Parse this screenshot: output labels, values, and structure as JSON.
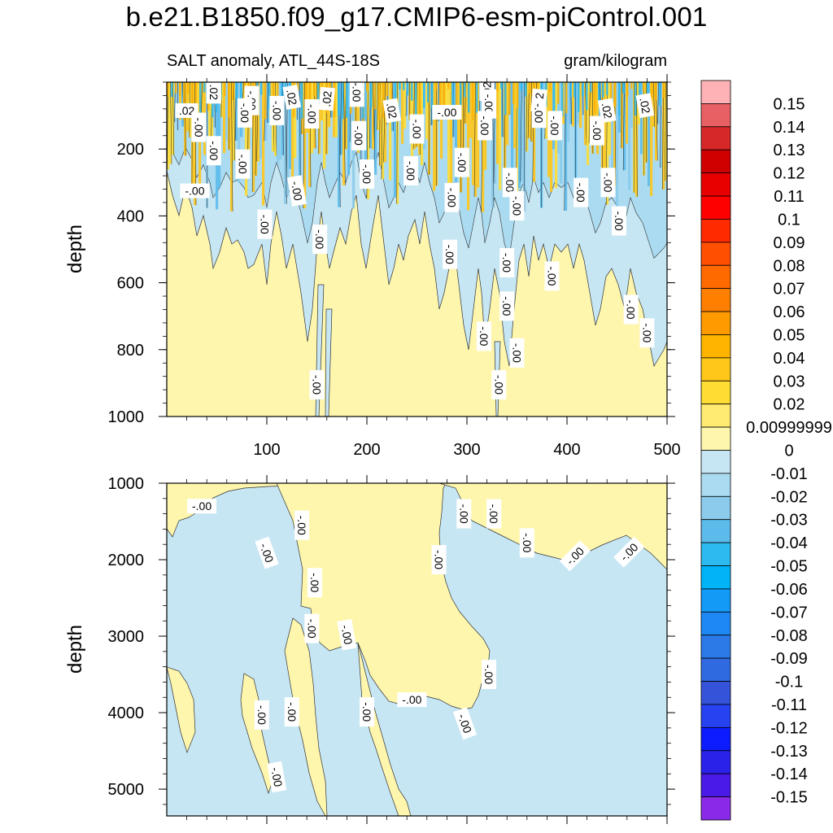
{
  "title": "b.e21.B1850.f09_g17.CMIP6-esm-piControl.001",
  "subtitle_left": "SALT anomaly, ATL_44S-18S",
  "subtitle_right": "gram/kilogram",
  "chart_data": [
    {
      "type": "contour",
      "panel": "upper",
      "ylabel": "depth",
      "xlim": [
        0,
        500
      ],
      "ylim": [
        1000,
        0
      ],
      "x_ticks": [
        100,
        200,
        300,
        400,
        500
      ],
      "y_ticks": [
        200,
        400,
        600,
        800,
        1000
      ],
      "contour_labels": [
        {
          "text": ".02",
          "x": 47,
          "y": 30,
          "rot": 90
        },
        {
          "text": "-.00",
          "x": 85,
          "y": 55,
          "rot": 90
        },
        {
          "text": ".02",
          "x": 125,
          "y": 45,
          "rot": 80
        },
        {
          "text": ".02",
          "x": 160,
          "y": 50,
          "rot": -85
        },
        {
          "text": "-.00",
          "x": 190,
          "y": 30,
          "rot": 90
        },
        {
          "text": ".02",
          "x": 320,
          "y": 22,
          "rot": -90
        },
        {
          "text": "-.00",
          "x": 322,
          "y": 65,
          "rot": 90
        },
        {
          "text": ".02",
          "x": 372,
          "y": 55,
          "rot": -85
        },
        {
          "text": ".02",
          "x": 20,
          "y": 85,
          "rot": 0
        },
        {
          "text": "-.00",
          "x": 78,
          "y": 92,
          "rot": 90
        },
        {
          "text": "-.00",
          "x": 110,
          "y": 85,
          "rot": 90
        },
        {
          "text": "-.00",
          "x": 145,
          "y": 95,
          "rot": 90
        },
        {
          "text": ".02",
          "x": 225,
          "y": 85,
          "rot": 80
        },
        {
          "text": "-.00",
          "x": 280,
          "y": 90,
          "rot": 0
        },
        {
          "text": "-.00",
          "x": 372,
          "y": 93,
          "rot": 90
        },
        {
          "text": ".02",
          "x": 440,
          "y": 85,
          "rot": 80
        },
        {
          "text": ".02",
          "x": 478,
          "y": 70,
          "rot": 80
        },
        {
          "text": "-.00",
          "x": 32,
          "y": 135,
          "rot": 90
        },
        {
          "text": "-.00",
          "x": 192,
          "y": 160,
          "rot": 90
        },
        {
          "text": "-.00",
          "x": 250,
          "y": 140,
          "rot": 90
        },
        {
          "text": "-.00",
          "x": 318,
          "y": 130,
          "rot": 90
        },
        {
          "text": "-.00",
          "x": 388,
          "y": 130,
          "rot": 90
        },
        {
          "text": "-.00",
          "x": 430,
          "y": 145,
          "rot": 90
        },
        {
          "text": "-.00",
          "x": 47,
          "y": 205,
          "rot": 90
        },
        {
          "text": "-.00",
          "x": 76,
          "y": 245,
          "rot": 90
        },
        {
          "text": "-.00",
          "x": 200,
          "y": 275,
          "rot": 90
        },
        {
          "text": "-.00",
          "x": 244,
          "y": 265,
          "rot": 90
        },
        {
          "text": "-.00",
          "x": 295,
          "y": 240,
          "rot": 90
        },
        {
          "text": "-.00",
          "x": 343,
          "y": 300,
          "rot": 90
        },
        {
          "text": "-.00",
          "x": 414,
          "y": 330,
          "rot": 90
        },
        {
          "text": "-.00",
          "x": 441,
          "y": 300,
          "rot": 90
        },
        {
          "text": "-.00",
          "x": 28,
          "y": 325,
          "rot": 0
        },
        {
          "text": "-.00",
          "x": 130,
          "y": 325,
          "rot": 80
        },
        {
          "text": "-.00",
          "x": 285,
          "y": 345,
          "rot": 90
        },
        {
          "text": "-.00",
          "x": 350,
          "y": 370,
          "rot": 90
        },
        {
          "text": "-.00",
          "x": 98,
          "y": 425,
          "rot": 90
        },
        {
          "text": "-.00",
          "x": 153,
          "y": 470,
          "rot": 90
        },
        {
          "text": "-.00",
          "x": 283,
          "y": 515,
          "rot": 90
        },
        {
          "text": "-.00",
          "x": 340,
          "y": 540,
          "rot": 90
        },
        {
          "text": "-.00",
          "x": 452,
          "y": 415,
          "rot": 90
        },
        {
          "text": "-.00",
          "x": 385,
          "y": 580,
          "rot": 90
        },
        {
          "text": "-.00",
          "x": 340,
          "y": 670,
          "rot": 90
        },
        {
          "text": "-.00",
          "x": 464,
          "y": 680,
          "rot": 90
        },
        {
          "text": "-.00",
          "x": 317,
          "y": 760,
          "rot": 90
        },
        {
          "text": "-.00",
          "x": 350,
          "y": 810,
          "rot": 90
        },
        {
          "text": "-.00",
          "x": 480,
          "y": 750,
          "rot": 90
        },
        {
          "text": "-.00",
          "x": 150,
          "y": 905,
          "rot": 90
        },
        {
          "text": "-.00",
          "x": 332,
          "y": 905,
          "rot": 90
        }
      ]
    },
    {
      "type": "contour",
      "panel": "lower",
      "ylabel": "depth",
      "xlim": [
        0,
        500
      ],
      "ylim": [
        5350,
        1000
      ],
      "x_ticks": [
        100,
        200,
        300,
        400,
        500
      ],
      "y_ticks": [
        1000,
        2000,
        3000,
        4000,
        5000
      ],
      "contour_labels": [
        {
          "text": "-.00",
          "x": 35,
          "y": 1300,
          "rot": 0
        },
        {
          "text": "-.00",
          "x": 135,
          "y": 1550,
          "rot": 90
        },
        {
          "text": "-.00",
          "x": 100,
          "y": 1910,
          "rot": 70
        },
        {
          "text": "-.00",
          "x": 148,
          "y": 2300,
          "rot": 90
        },
        {
          "text": "-.00",
          "x": 145,
          "y": 2900,
          "rot": 90
        },
        {
          "text": "-.00",
          "x": 180,
          "y": 2980,
          "rot": 80
        },
        {
          "text": "-.00",
          "x": 297,
          "y": 1400,
          "rot": 90
        },
        {
          "text": "-.00",
          "x": 327,
          "y": 1400,
          "rot": 90
        },
        {
          "text": "-.00",
          "x": 360,
          "y": 1780,
          "rot": 90
        },
        {
          "text": "-.00",
          "x": 272,
          "y": 2000,
          "rot": 90
        },
        {
          "text": "-.00",
          "x": 408,
          "y": 1950,
          "rot": -45
        },
        {
          "text": "-.00",
          "x": 462,
          "y": 1900,
          "rot": -45
        },
        {
          "text": "-.00",
          "x": 322,
          "y": 3500,
          "rot": 90
        },
        {
          "text": "-.00",
          "x": 245,
          "y": 3830,
          "rot": 0
        },
        {
          "text": "-.00",
          "x": 200,
          "y": 3990,
          "rot": 90
        },
        {
          "text": "-.00",
          "x": 95,
          "y": 4030,
          "rot": 90
        },
        {
          "text": "-.00",
          "x": 125,
          "y": 3990,
          "rot": 90
        },
        {
          "text": "-.00",
          "x": 298,
          "y": 4140,
          "rot": 70
        },
        {
          "text": "-.00",
          "x": 110,
          "y": 4840,
          "rot": 80
        }
      ]
    }
  ],
  "colorbar": {
    "labels": [
      "0.15",
      "0.14",
      "0.13",
      "0.12",
      "0.11",
      "0.1",
      "0.09",
      "0.08",
      "0.07",
      "0.06",
      "0.05",
      "0.04",
      "0.03",
      "0.02",
      "0.00999999",
      "0",
      "-0.01",
      "-0.02",
      "-0.03",
      "-0.04",
      "-0.05",
      "-0.06",
      "-0.07",
      "-0.08",
      "-0.09",
      "-0.1",
      "-0.11",
      "-0.12",
      "-0.13",
      "-0.14",
      "-0.15"
    ],
    "colors": [
      "#ffb2b5",
      "#e86064",
      "#d62828",
      "#cf0000",
      "#e80000",
      "#ff0000",
      "#ff2a00",
      "#ff4f00",
      "#ff6a00",
      "#ff8000",
      "#ff9a00",
      "#ffb400",
      "#ffc71a",
      "#ffdd33",
      "#ffeb72",
      "#fff6ae",
      "#c6e6f3",
      "#aadbf1",
      "#8ccbeb",
      "#5dbbec",
      "#2cbaf0",
      "#00b4f7",
      "#139af7",
      "#1e88f5",
      "#2b7ae8",
      "#2f6ae0",
      "#3453d8",
      "#2742f0",
      "#0c1cff",
      "#2a22e8",
      "#4a1ae6",
      "#8a2ae8"
    ]
  }
}
